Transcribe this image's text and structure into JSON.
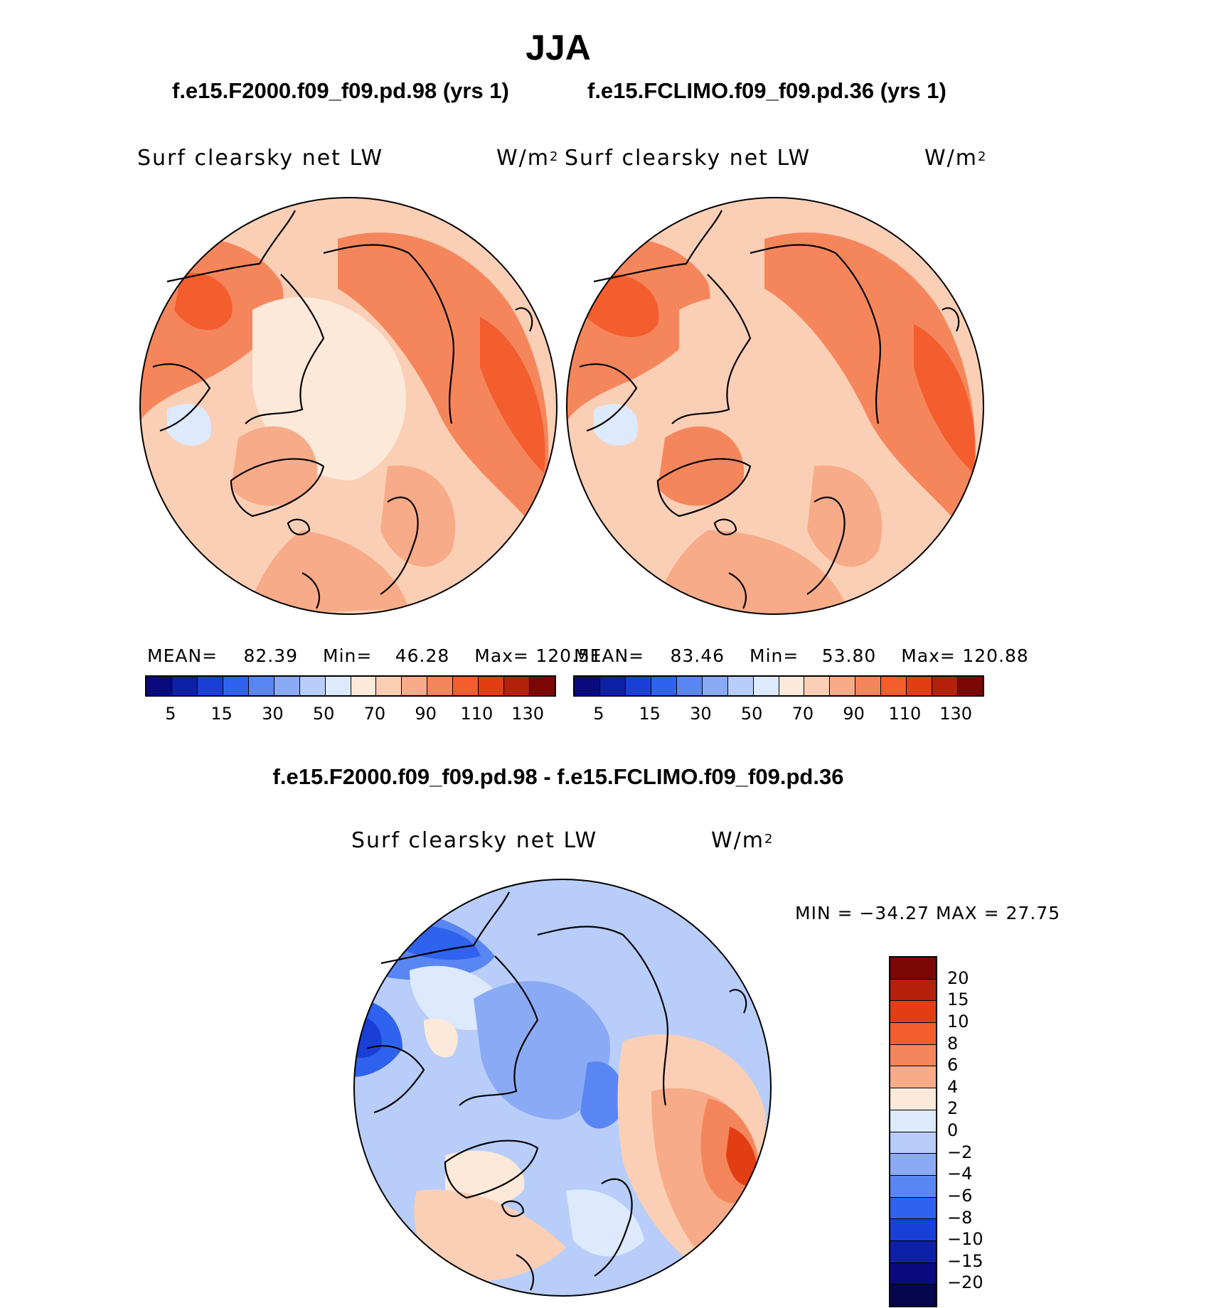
{
  "title": "JJA",
  "panels": [
    {
      "case": "f.e15.F2000.f09_f09.pd.98 (yrs 1)",
      "variable": "Surf clearsky net LW",
      "units_base": "W/m",
      "units_exp": "2",
      "stats": {
        "mean_label": "MEAN=",
        "mean": "82.39",
        "min_label": "Min=",
        "min": "46.28",
        "max_label": "Max=",
        "max": "120.51"
      }
    },
    {
      "case": "f.e15.FCLIMO.f09_f09.pd.36 (yrs 1)",
      "variable": "Surf clearsky net LW",
      "units_base": "W/m",
      "units_exp": "2",
      "stats": {
        "mean_label": "MEAN=",
        "mean": "83.46",
        "min_label": "Min=",
        "min": "53.80",
        "max_label": "Max=",
        "max": "120.88"
      }
    }
  ],
  "diff": {
    "title": "f.e15.F2000.f09_f09.pd.98 - f.e15.FCLIMO.f09_f09.pd.36",
    "variable": "Surf clearsky net LW",
    "units_base": "W/m",
    "units_exp": "2",
    "minmax": "MIN = −34.27 MAX =   27.75"
  },
  "chart_data": [
    {
      "type": "heatmap",
      "projection": "north polar stereographic",
      "title": "Surf clearsky net LW",
      "units": "W/m2",
      "stats": {
        "mean": 82.39,
        "min": 46.28,
        "max": 120.51
      },
      "colorbar_levels": [
        5,
        15,
        30,
        50,
        70,
        90,
        110,
        130
      ],
      "colorbar_colors": [
        "#0a0a80",
        "#0e1fa8",
        "#1a3fd6",
        "#2f62ee",
        "#5a86f3",
        "#8aaaf5",
        "#b8cdfa",
        "#dde9fc",
        "#fde9d9",
        "#fbcfb5",
        "#f8ab88",
        "#f5865c",
        "#f45d2e",
        "#e33d14",
        "#b4200b",
        "#7d0606"
      ]
    },
    {
      "type": "heatmap",
      "projection": "north polar stereographic",
      "title": "Surf clearsky net LW",
      "units": "W/m2",
      "stats": {
        "mean": 83.46,
        "min": 53.8,
        "max": 120.88
      },
      "colorbar_levels": [
        5,
        15,
        30,
        50,
        70,
        90,
        110,
        130
      ],
      "colorbar_colors": [
        "#0a0a80",
        "#0e1fa8",
        "#1a3fd6",
        "#2f62ee",
        "#5a86f3",
        "#8aaaf5",
        "#b8cdfa",
        "#dde9fc",
        "#fde9d9",
        "#fbcfb5",
        "#f8ab88",
        "#f5865c",
        "#f45d2e",
        "#e33d14",
        "#b4200b",
        "#7d0606"
      ]
    },
    {
      "type": "heatmap",
      "projection": "north polar stereographic",
      "title": "Surf clearsky net LW (difference)",
      "units": "W/m2",
      "stats": {
        "min": -34.27,
        "max": 27.75
      },
      "colorbar_levels": [
        "20",
        "15",
        "10",
        "8",
        "6",
        "4",
        "2",
        "0",
        "−2",
        "−4",
        "−6",
        "−8",
        "−10",
        "−15",
        "−20"
      ],
      "colorbar_colors": [
        "#7d0606",
        "#b4200b",
        "#e33d14",
        "#f45d2e",
        "#f5865c",
        "#f8ab88",
        "#fde9d9",
        "#dde9fc",
        "#b8cdfa",
        "#8aaaf5",
        "#5a86f3",
        "#2f62ee",
        "#1a3fd6",
        "#0e1fa8",
        "#0a0a80",
        "#06064d"
      ]
    }
  ]
}
